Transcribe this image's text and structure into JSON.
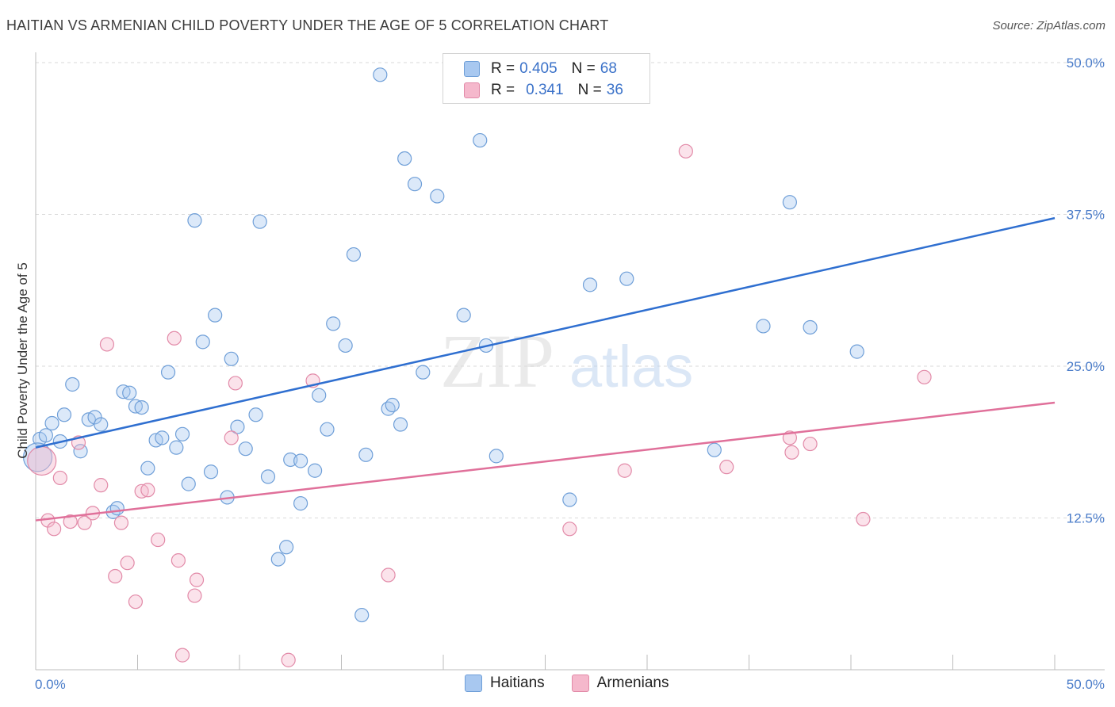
{
  "header": {
    "title": "HAITIAN VS ARMENIAN CHILD POVERTY UNDER THE AGE OF 5 CORRELATION CHART",
    "source": "Source: ZipAtlas.com"
  },
  "watermark": {
    "part1": "ZIP",
    "part2": "atlas"
  },
  "legend": {
    "rows": [
      {
        "r_label": "R =",
        "r_value": "0.405",
        "n_label": "N =",
        "n_value": "68",
        "color": "#a8c8f0"
      },
      {
        "r_label": "R =",
        "r_value": "0.341",
        "n_label": "N =",
        "n_value": "36",
        "color": "#f5b8cc"
      }
    ]
  },
  "bottom_legend": [
    {
      "label": "Haitians",
      "color": "#a8c8f0"
    },
    {
      "label": "Armenians",
      "color": "#f5b8cc"
    }
  ],
  "chart_data": {
    "type": "scatter",
    "title": "HAITIAN VS ARMENIAN CHILD POVERTY UNDER THE AGE OF 5 CORRELATION CHART",
    "xlabel": "",
    "ylabel": "Child Poverty Under the Age of 5",
    "xlim": [
      0,
      50
    ],
    "ylim": [
      0,
      50
    ],
    "x_tick_labels": [
      "0.0%",
      "50.0%"
    ],
    "y_ticks": [
      12.5,
      25.0,
      37.5,
      50.0
    ],
    "y_tick_labels": [
      "12.5%",
      "25.0%",
      "37.5%",
      "50.0%"
    ],
    "grid": "horizontal dashed",
    "series": [
      {
        "name": "Haitians",
        "color": "#a8c8f0",
        "stroke": "#6f9fd8",
        "trend_color": "#2f6fd0",
        "trend": {
          "x": [
            0,
            50
          ],
          "y": [
            18.3,
            37.2
          ]
        },
        "points": [
          [
            0.2,
            19.0
          ],
          [
            0.5,
            19.3
          ],
          [
            0.8,
            20.3
          ],
          [
            1.2,
            18.8
          ],
          [
            1.4,
            21.0
          ],
          [
            1.8,
            23.5
          ],
          [
            2.2,
            18.0
          ],
          [
            2.6,
            20.6
          ],
          [
            2.9,
            20.8
          ],
          [
            3.2,
            20.2
          ],
          [
            3.8,
            13.0
          ],
          [
            4.0,
            13.3
          ],
          [
            4.3,
            22.9
          ],
          [
            4.6,
            22.8
          ],
          [
            4.9,
            21.7
          ],
          [
            5.2,
            21.6
          ],
          [
            5.5,
            16.6
          ],
          [
            5.9,
            18.9
          ],
          [
            6.2,
            19.1
          ],
          [
            6.5,
            24.5
          ],
          [
            6.9,
            18.3
          ],
          [
            7.2,
            19.4
          ],
          [
            7.5,
            15.3
          ],
          [
            7.8,
            37.0
          ],
          [
            8.2,
            27.0
          ],
          [
            8.6,
            16.3
          ],
          [
            8.8,
            29.2
          ],
          [
            9.4,
            14.2
          ],
          [
            9.6,
            25.6
          ],
          [
            9.9,
            20.0
          ],
          [
            10.3,
            18.2
          ],
          [
            10.8,
            21.0
          ],
          [
            11.0,
            36.9
          ],
          [
            11.4,
            15.9
          ],
          [
            11.9,
            9.1
          ],
          [
            12.3,
            10.1
          ],
          [
            12.5,
            17.3
          ],
          [
            13.0,
            17.2
          ],
          [
            13.0,
            13.7
          ],
          [
            13.7,
            16.4
          ],
          [
            13.9,
            22.6
          ],
          [
            14.3,
            19.8
          ],
          [
            14.6,
            28.5
          ],
          [
            15.2,
            26.7
          ],
          [
            15.6,
            34.2
          ],
          [
            16.0,
            4.5
          ],
          [
            16.2,
            17.7
          ],
          [
            16.9,
            49.0
          ],
          [
            17.3,
            21.5
          ],
          [
            17.5,
            21.8
          ],
          [
            17.9,
            20.2
          ],
          [
            18.1,
            42.1
          ],
          [
            18.6,
            40.0
          ],
          [
            19.0,
            24.5
          ],
          [
            19.7,
            39.0
          ],
          [
            21.0,
            29.2
          ],
          [
            21.8,
            43.6
          ],
          [
            22.1,
            26.7
          ],
          [
            22.6,
            17.6
          ],
          [
            26.2,
            14.0
          ],
          [
            27.2,
            31.7
          ],
          [
            29.0,
            32.2
          ],
          [
            33.3,
            18.1
          ],
          [
            35.7,
            28.3
          ],
          [
            37.0,
            38.5
          ],
          [
            38.0,
            28.2
          ],
          [
            40.3,
            26.2
          ],
          [
            0.1,
            17.5
          ]
        ]
      },
      {
        "name": "Armenians",
        "color": "#f5b8cc",
        "stroke": "#e28aa8",
        "trend_color": "#e0709a",
        "trend": {
          "x": [
            0,
            50
          ],
          "y": [
            12.3,
            22.0
          ]
        },
        "points": [
          [
            0.3,
            17.2
          ],
          [
            0.6,
            12.3
          ],
          [
            0.9,
            11.6
          ],
          [
            1.2,
            15.8
          ],
          [
            1.7,
            12.2
          ],
          [
            2.1,
            18.7
          ],
          [
            2.4,
            12.1
          ],
          [
            2.8,
            12.9
          ],
          [
            3.2,
            15.2
          ],
          [
            3.5,
            26.8
          ],
          [
            3.9,
            7.7
          ],
          [
            4.2,
            12.1
          ],
          [
            4.5,
            8.8
          ],
          [
            4.9,
            5.6
          ],
          [
            5.2,
            14.7
          ],
          [
            5.5,
            14.8
          ],
          [
            6.0,
            10.7
          ],
          [
            6.8,
            27.3
          ],
          [
            7.0,
            9.0
          ],
          [
            7.2,
            1.2
          ],
          [
            7.8,
            6.1
          ],
          [
            7.9,
            7.4
          ],
          [
            9.6,
            19.1
          ],
          [
            9.8,
            23.6
          ],
          [
            12.4,
            0.8
          ],
          [
            13.6,
            23.8
          ],
          [
            17.3,
            7.8
          ],
          [
            26.2,
            11.6
          ],
          [
            28.9,
            16.4
          ],
          [
            31.9,
            42.7
          ],
          [
            33.9,
            16.7
          ],
          [
            37.0,
            19.1
          ],
          [
            37.1,
            17.9
          ],
          [
            38.0,
            18.6
          ],
          [
            40.6,
            12.4
          ],
          [
            43.6,
            24.1
          ]
        ]
      }
    ]
  }
}
